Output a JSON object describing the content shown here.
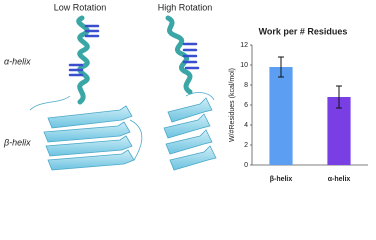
{
  "panel_labels": {
    "low_rotation": "Low Rotation",
    "high_rotation": "High Rotation",
    "alpha_helix": "α-helix",
    "beta_helix": "β-helix"
  },
  "chart_data": {
    "type": "bar",
    "title": "Work per # Residues",
    "ylabel": "W/#Residues (kcal/mol)",
    "categories": [
      "β-helix",
      "α-helix"
    ],
    "values": [
      9.8,
      6.8
    ],
    "errors": [
      1.0,
      1.1
    ],
    "colors": [
      "#5c9ff2",
      "#7a3fe4"
    ],
    "ylim": [
      0,
      12
    ],
    "yticks": [
      0,
      2,
      4,
      6,
      8,
      10,
      12
    ],
    "grid": false
  }
}
